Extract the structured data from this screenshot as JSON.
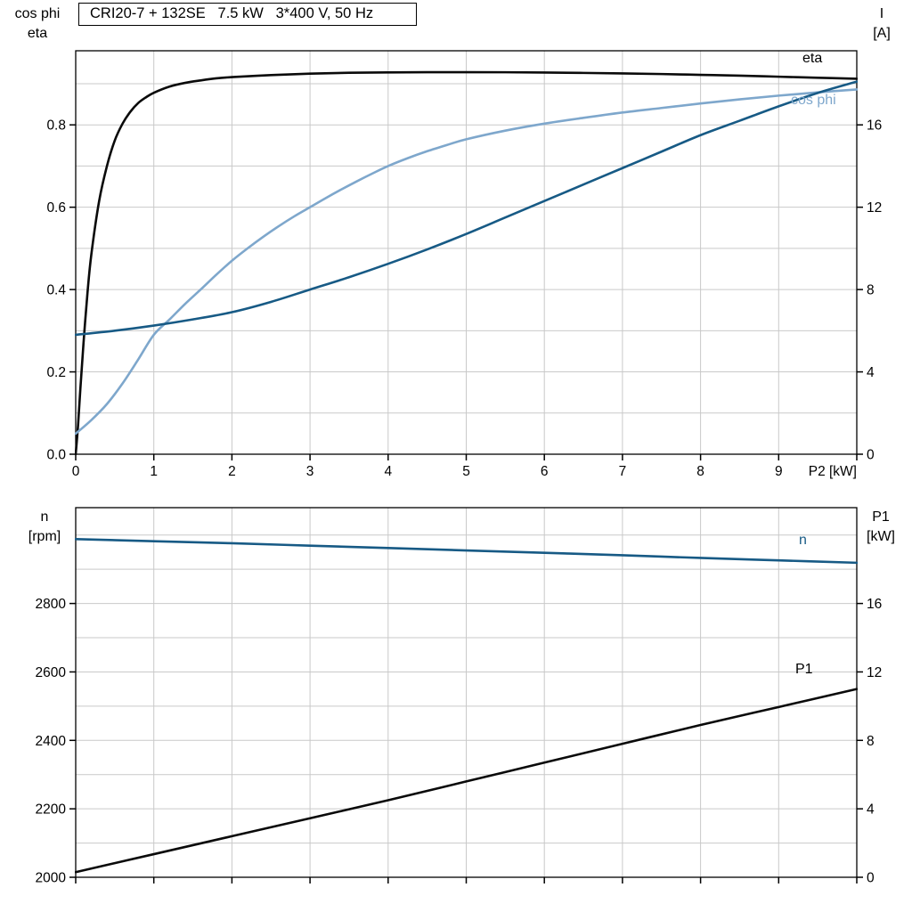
{
  "colors": {
    "black": "#0a0a0a",
    "dark_blue": "#175a85",
    "light_blue": "#7ea7cc",
    "grid": "#c9c9c9",
    "axis": "#000000",
    "background": "#ffffff"
  },
  "chart_data": [
    {
      "type": "line",
      "name": "motor-performance",
      "title": "CRI20-7 + 132SE   7.5 kW   3*400 V, 50 Hz",
      "x_axis": {
        "min": 0,
        "max": 10,
        "grid_step": 1,
        "tick_values": [
          0,
          1,
          2,
          3,
          4,
          5,
          6,
          7,
          8,
          9
        ],
        "tick_labels": [
          "0",
          "1",
          "2",
          "3",
          "4",
          "5",
          "6",
          "7",
          "8",
          "9"
        ],
        "end_label": "P2 [kW]"
      },
      "left_axis": {
        "title": "cos phi\neta",
        "min": 0,
        "max": 0.98,
        "grid_step": 0.1,
        "tick_values": [
          0,
          0.2,
          0.4,
          0.6,
          0.8
        ],
        "tick_labels": [
          "0.0",
          "0.2",
          "0.4",
          "0.6",
          "0.8"
        ]
      },
      "right_axis": {
        "title": "I\n[A]",
        "min": 0,
        "max": 19.6,
        "tick_values": [
          0,
          4,
          8,
          12,
          16
        ],
        "tick_labels": [
          "0",
          "4",
          "8",
          "12",
          "16"
        ]
      },
      "series": [
        {
          "name": "eta",
          "label": "eta",
          "axis": "left",
          "color_key": "black",
          "points": [
            [
              0,
              0
            ],
            [
              0.03,
              0.07
            ],
            [
              0.06,
              0.16
            ],
            [
              0.1,
              0.27
            ],
            [
              0.15,
              0.39
            ],
            [
              0.2,
              0.485
            ],
            [
              0.3,
              0.615
            ],
            [
              0.4,
              0.7
            ],
            [
              0.5,
              0.762
            ],
            [
              0.6,
              0.803
            ],
            [
              0.7,
              0.832
            ],
            [
              0.8,
              0.853
            ],
            [
              0.9,
              0.867
            ],
            [
              1,
              0.878
            ],
            [
              1.2,
              0.893
            ],
            [
              1.4,
              0.902
            ],
            [
              1.6,
              0.908
            ],
            [
              1.8,
              0.913
            ],
            [
              2,
              0.916
            ],
            [
              2.5,
              0.921
            ],
            [
              3,
              0.9245
            ],
            [
              3.5,
              0.9265
            ],
            [
              4,
              0.9275
            ],
            [
              4.5,
              0.928
            ],
            [
              5,
              0.928
            ],
            [
              5.5,
              0.9278
            ],
            [
              6,
              0.9272
            ],
            [
              6.5,
              0.9262
            ],
            [
              7,
              0.925
            ],
            [
              7.5,
              0.9235
            ],
            [
              8,
              0.9215
            ],
            [
              8.5,
              0.9195
            ],
            [
              9,
              0.917
            ],
            [
              9.5,
              0.9145
            ],
            [
              10,
              0.912
            ]
          ]
        },
        {
          "name": "cos_phi",
          "label": "cos phi",
          "axis": "left",
          "color_key": "light_blue",
          "points": [
            [
              0,
              0.05
            ],
            [
              0.2,
              0.083
            ],
            [
              0.4,
              0.122
            ],
            [
              0.6,
              0.172
            ],
            [
              0.8,
              0.23
            ],
            [
              1,
              0.29
            ],
            [
              1.2,
              0.327
            ],
            [
              1.4,
              0.365
            ],
            [
              1.6,
              0.4
            ],
            [
              1.8,
              0.436
            ],
            [
              2,
              0.47
            ],
            [
              2.2,
              0.5
            ],
            [
              2.4,
              0.528
            ],
            [
              2.6,
              0.554
            ],
            [
              2.8,
              0.578
            ],
            [
              3,
              0.6
            ],
            [
              3.2,
              0.622
            ],
            [
              3.4,
              0.643
            ],
            [
              3.6,
              0.663
            ],
            [
              3.8,
              0.682
            ],
            [
              4,
              0.7
            ],
            [
              4.25,
              0.719
            ],
            [
              4.5,
              0.736
            ],
            [
              4.75,
              0.751
            ],
            [
              5,
              0.765
            ],
            [
              5.5,
              0.786
            ],
            [
              6,
              0.803
            ],
            [
              6.5,
              0.817
            ],
            [
              7,
              0.83
            ],
            [
              7.5,
              0.841
            ],
            [
              8,
              0.852
            ],
            [
              8.5,
              0.862
            ],
            [
              9,
              0.871
            ],
            [
              9.5,
              0.879
            ],
            [
              10,
              0.886
            ]
          ]
        },
        {
          "name": "current",
          "label": "",
          "axis": "right",
          "color_key": "dark_blue",
          "points": [
            [
              0,
              5.8
            ],
            [
              0.5,
              6.0
            ],
            [
              1,
              6.25
            ],
            [
              1.5,
              6.55
            ],
            [
              2,
              6.9
            ],
            [
              2.5,
              7.4
            ],
            [
              3,
              8.0
            ],
            [
              3.5,
              8.6
            ],
            [
              4,
              9.25
            ],
            [
              4.5,
              9.95
            ],
            [
              5,
              10.7
            ],
            [
              5.5,
              11.5
            ],
            [
              6,
              12.3
            ],
            [
              6.5,
              13.1
            ],
            [
              7,
              13.9
            ],
            [
              7.5,
              14.7
            ],
            [
              8,
              15.5
            ],
            [
              8.5,
              16.2
            ],
            [
              9,
              16.9
            ],
            [
              9.5,
              17.55
            ],
            [
              10,
              18.1
            ]
          ]
        }
      ]
    },
    {
      "type": "line",
      "name": "speed-power",
      "title": "",
      "x_axis": {
        "min": 0,
        "max": 10,
        "grid_step": 1,
        "tick_values": [],
        "tick_labels": [],
        "end_label": ""
      },
      "left_axis": {
        "title": "n\n[rpm]",
        "min": 2000,
        "max": 3080,
        "grid_step": 100,
        "tick_values": [
          2000,
          2200,
          2400,
          2600,
          2800
        ],
        "tick_labels": [
          "2000",
          "2200",
          "2400",
          "2600",
          "2800"
        ]
      },
      "right_axis": {
        "title": "P1\n[kW]",
        "min": 0,
        "max": 21.6,
        "tick_values": [
          0,
          4,
          8,
          12,
          16
        ],
        "tick_labels": [
          "0",
          "4",
          "8",
          "12",
          "16"
        ]
      },
      "series": [
        {
          "name": "n",
          "label": "n",
          "axis": "left",
          "color_key": "dark_blue",
          "points": [
            [
              0,
              2988
            ],
            [
              1,
              2982
            ],
            [
              2,
              2976
            ],
            [
              3,
              2969
            ],
            [
              4,
              2962
            ],
            [
              5,
              2955
            ],
            [
              6,
              2948
            ],
            [
              7,
              2941
            ],
            [
              8,
              2933
            ],
            [
              9,
              2926
            ],
            [
              10,
              2919
            ]
          ]
        },
        {
          "name": "P1",
          "label": "P1",
          "axis": "right",
          "color_key": "black",
          "points": [
            [
              0,
              0.3
            ],
            [
              1,
              1.35
            ],
            [
              2,
              2.4
            ],
            [
              3,
              3.45
            ],
            [
              4,
              4.5
            ],
            [
              5,
              5.6
            ],
            [
              6,
              6.7
            ],
            [
              7,
              7.8
            ],
            [
              8,
              8.9
            ],
            [
              9,
              9.95
            ],
            [
              10,
              11.0
            ]
          ]
        }
      ]
    }
  ]
}
